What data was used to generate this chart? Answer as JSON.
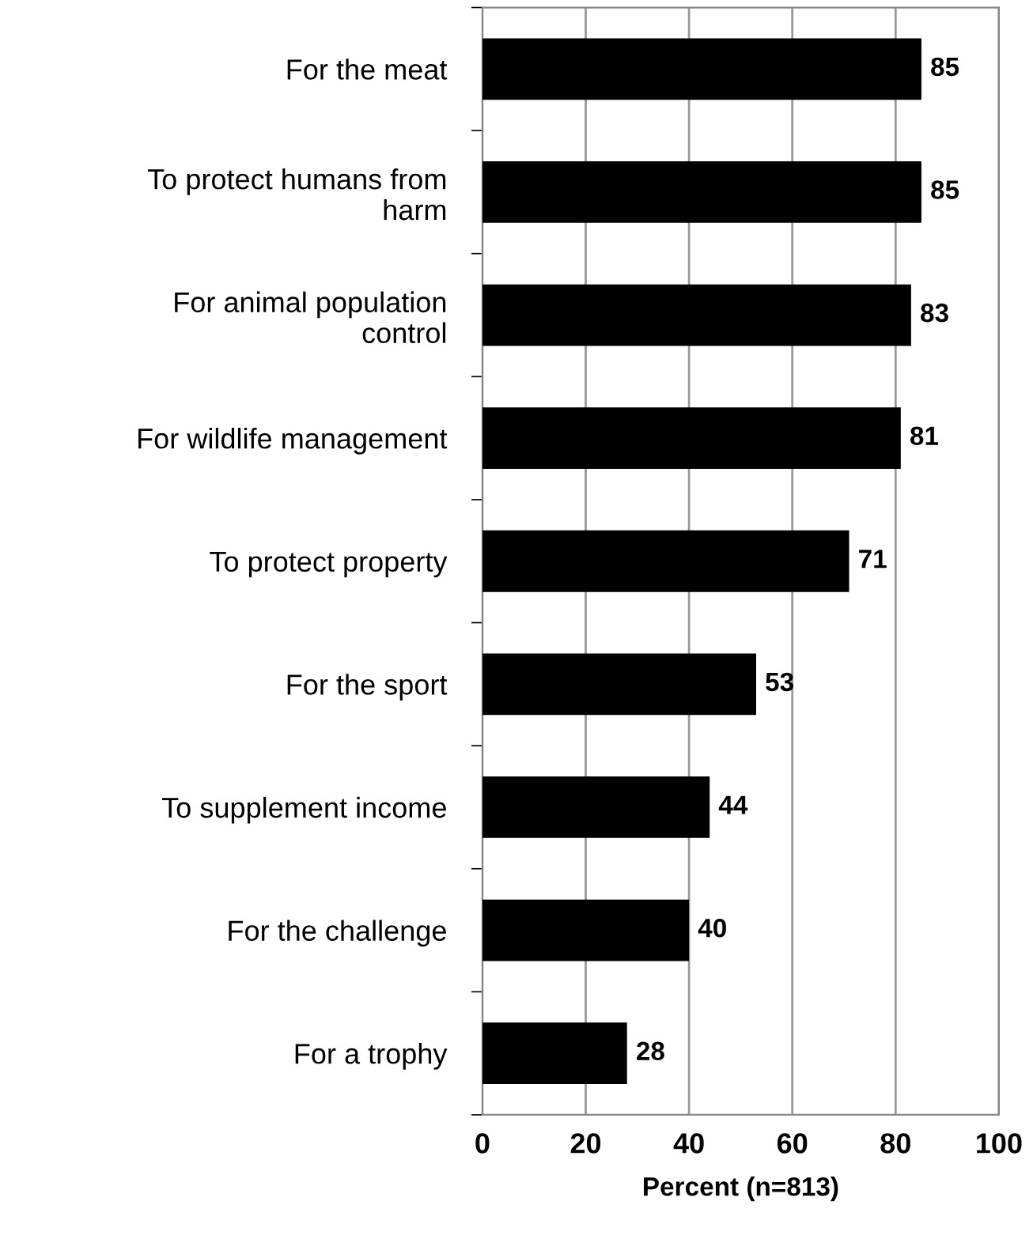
{
  "chart_data": {
    "type": "bar",
    "orientation": "horizontal",
    "xlabel": "Percent (n=813)",
    "categories": [
      "For the meat",
      "To protect humans from\nharm",
      "For animal population\ncontrol",
      "For wildlife management",
      "To protect property",
      "For the sport",
      "To supplement income",
      "For the challenge",
      "For a trophy"
    ],
    "values": [
      85,
      85,
      83,
      81,
      71,
      53,
      44,
      40,
      28
    ],
    "color": "#000000",
    "xlim": [
      0,
      100
    ],
    "xticks": [
      0,
      20,
      40,
      60,
      80,
      100
    ],
    "grid": "x",
    "data_labels": true
  }
}
